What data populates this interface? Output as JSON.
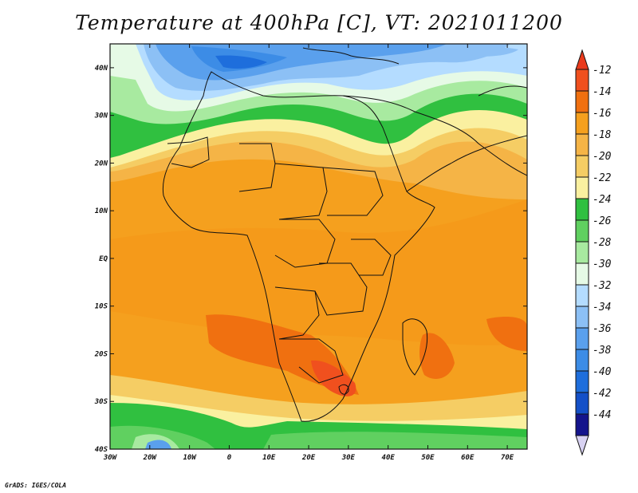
{
  "title": "Temperature at 400hPa [C], VT: 2021011200",
  "credit": "GrADS: IGES/COLA",
  "map": {
    "lon_range": [
      -30,
      75
    ],
    "lat_range": [
      -40,
      45
    ],
    "x_ticks": [
      "30W",
      "20W",
      "10W",
      "0",
      "10E",
      "20E",
      "30E",
      "40E",
      "50E",
      "60E",
      "70E"
    ],
    "y_ticks": [
      "40N",
      "30N",
      "20N",
      "10N",
      "EQ",
      "10S",
      "20S",
      "30S",
      "40S"
    ]
  },
  "colorbar": {
    "labels": [
      "-12",
      "-14",
      "-16",
      "-18",
      "-20",
      "-22",
      "-24",
      "-26",
      "-28",
      "-30",
      "-32",
      "-34",
      "-36",
      "-38",
      "-40",
      "-42",
      "-44"
    ],
    "colors": [
      "#f0501e",
      "#f07010",
      "#f5a01e",
      "#f5b446",
      "#f5cd64",
      "#faf0a0",
      "#30c040",
      "#60d060",
      "#a8eaa0",
      "#e6fae6",
      "#b4dcff",
      "#8cc0f5",
      "#5aa0ed",
      "#3c8ce6",
      "#1e6edc",
      "#1450c8",
      "#14148c"
    ],
    "top_color": "#ea3a1c",
    "bottom_color": "#d8d2f2"
  }
}
